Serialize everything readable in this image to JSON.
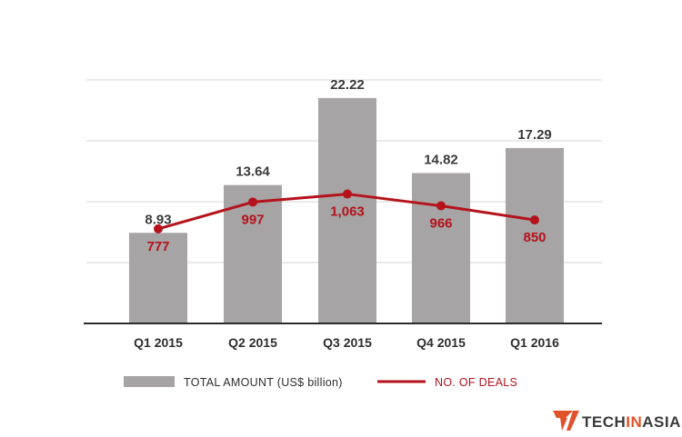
{
  "chart_data": {
    "type": "bar",
    "categories": [
      "Q1 2015",
      "Q2 2015",
      "Q3 2015",
      "Q4 2015",
      "Q1 2016"
    ],
    "series": [
      {
        "name": "TOTAL AMOUNT (US$ billion)",
        "type": "bar",
        "values": [
          8.93,
          13.64,
          22.22,
          14.82,
          17.29
        ],
        "labels": [
          "8.93",
          "13.64",
          "22.22",
          "14.82",
          "17.29"
        ],
        "color": "#a6a4a4"
      },
      {
        "name": "NO. OF DEALS",
        "type": "line",
        "values": [
          777,
          997,
          1063,
          966,
          850
        ],
        "labels": [
          "777",
          "997",
          "1,063",
          "966",
          "850"
        ],
        "color": "#b5121b"
      }
    ],
    "ylim": [
      0,
      24
    ],
    "y2lim": [
      0,
      2000
    ],
    "grid": true,
    "legend_position": "bottom"
  },
  "branding": {
    "logo_text_part1": "TECH",
    "logo_text_part2": "IN",
    "logo_text_part3": "ASIA",
    "logo_color": "#e0522a",
    "text_color": "#3a3a3a"
  }
}
